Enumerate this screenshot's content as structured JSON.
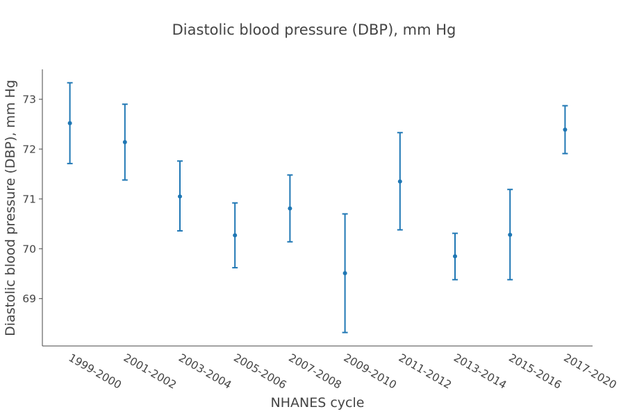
{
  "chart_data": {
    "type": "errorbar",
    "title": "Diastolic blood pressure (DBP), mm Hg",
    "xlabel": "NHANES cycle",
    "ylabel": "Diastolic blood pressure (DBP), mm Hg",
    "categories": [
      "1999-2000",
      "2001-2002",
      "2003-2004",
      "2005-2006",
      "2007-2008",
      "2009-2010",
      "2011-2012",
      "2013-2014",
      "2015-2016",
      "2017-2020"
    ],
    "values": [
      72.52,
      72.14,
      71.05,
      70.27,
      70.81,
      69.51,
      71.35,
      69.85,
      70.28,
      72.39
    ],
    "lower": [
      71.71,
      71.38,
      70.36,
      69.62,
      70.14,
      68.32,
      70.38,
      69.38,
      69.38,
      71.91
    ],
    "upper": [
      73.33,
      72.9,
      71.76,
      70.92,
      71.48,
      70.7,
      72.33,
      70.31,
      71.19,
      72.87
    ],
    "ylim": [
      68.05,
      73.6
    ],
    "yticks": [
      69,
      70,
      71,
      72,
      73
    ],
    "grid": false,
    "color": "#1f77b4"
  }
}
